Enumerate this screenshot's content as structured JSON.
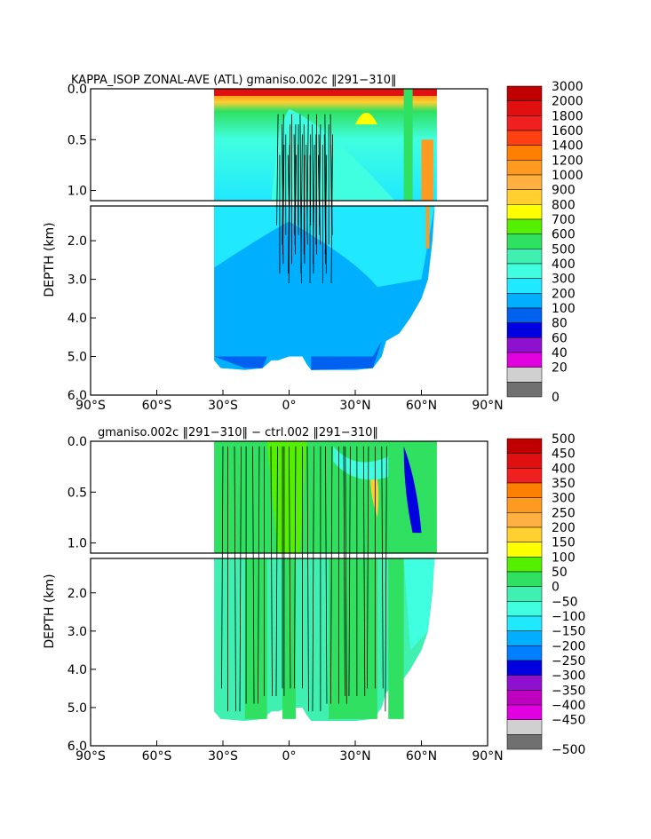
{
  "chart_data": [
    {
      "type": "heatmap",
      "title": "KAPPA_ISOP ZONAL-AVE (ATL) gmaniso.002c ‖291−310‖",
      "ylabel": "DEPTH (km)",
      "x_ticks": [
        "90°S",
        "60°S",
        "30°S",
        "0°",
        "30°N",
        "60°N",
        "90°N"
      ],
      "y_ticks_upper": [
        "0.0",
        "0.5",
        "1.0"
      ],
      "y_ticks_lower": [
        "2.0",
        "3.0",
        "4.0",
        "5.0",
        "6.0"
      ],
      "xlim": [
        -90,
        90
      ],
      "ylim": [
        0,
        6
      ],
      "colorbar": {
        "levels": [
          "3000",
          "2000",
          "1800",
          "1600",
          "1400",
          "1200",
          "1000",
          "900",
          "800",
          "700",
          "600",
          "500",
          "400",
          "300",
          "200",
          "100",
          "80",
          "60",
          "40",
          "20",
          "0"
        ],
        "colors": [
          "#c00000",
          "#e01010",
          "#f02020",
          "#ff4010",
          "#ff7f00",
          "#ff9a20",
          "#ffb040",
          "#ffd030",
          "#ffff00",
          "#54f000",
          "#30e060",
          "#40f0b0",
          "#40ffe0",
          "#20e8ff",
          "#00b0ff",
          "#0060f0",
          "#0000e0",
          "#9010d0",
          "#e000e0",
          "#d0d0d0",
          "#707070"
        ]
      }
    },
    {
      "type": "heatmap",
      "title": "gmaniso.002c ‖291−310‖ − ctrl.002 ‖291−310‖",
      "ylabel": "DEPTH (km)",
      "x_ticks": [
        "90°S",
        "60°S",
        "30°S",
        "0°",
        "30°N",
        "60°N",
        "90°N"
      ],
      "y_ticks_upper": [
        "0.0",
        "0.5",
        "1.0"
      ],
      "y_ticks_lower": [
        "2.0",
        "3.0",
        "4.0",
        "5.0",
        "6.0"
      ],
      "xlim": [
        -90,
        90
      ],
      "ylim": [
        0,
        6
      ],
      "colorbar": {
        "levels": [
          "500",
          "450",
          "400",
          "350",
          "300",
          "250",
          "200",
          "150",
          "100",
          "50",
          "0",
          "−50",
          "−100",
          "−150",
          "−200",
          "−250",
          "−300",
          "−350",
          "−400",
          "−450",
          "−500"
        ],
        "colors": [
          "#c00000",
          "#e01010",
          "#f02020",
          "#ff7f00",
          "#ff9a20",
          "#ffb040",
          "#ffd030",
          "#ffff00",
          "#54f000",
          "#30e060",
          "#40f0b0",
          "#40ffe0",
          "#20e8ff",
          "#00b0ff",
          "#0080ff",
          "#0000e0",
          "#9010d0",
          "#c000c0",
          "#e000e0",
          "#d0d0d0",
          "#707070"
        ]
      }
    }
  ]
}
